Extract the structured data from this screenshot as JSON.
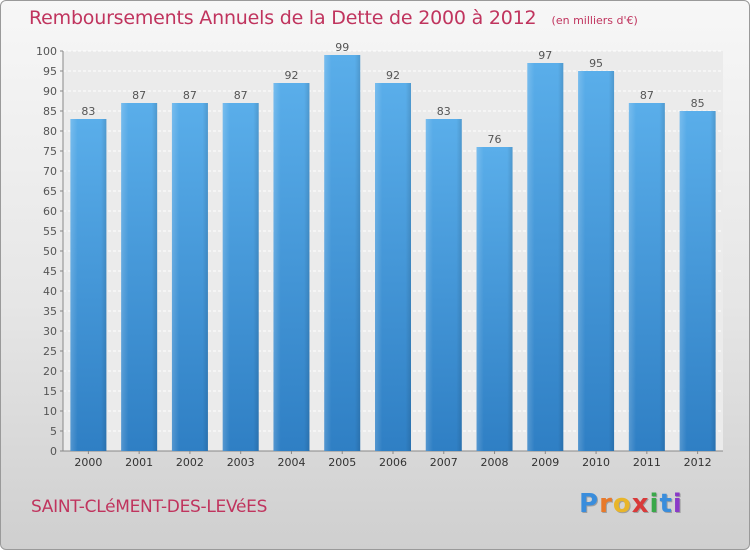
{
  "header": {
    "title": "Remboursements Annuels de la Dette de 2000 à 2012",
    "unit": "(en milliers d'€)"
  },
  "footer": {
    "commune": "SAINT-CLéMENT-DES-LEVéES",
    "logo_letters": [
      "P",
      "r",
      "o",
      "x",
      "i",
      "t",
      "i"
    ],
    "logo_colors": [
      "#3a8ddc",
      "#e8792a",
      "#e8b52a",
      "#d83a3a",
      "#3aa84a",
      "#3a8ddc",
      "#8a3ac8"
    ]
  },
  "chart_data": {
    "type": "bar",
    "title": "Remboursements Annuels de la Dette de 2000 à 2012",
    "unit": "(en milliers d'€)",
    "categories": [
      "2000",
      "2001",
      "2002",
      "2003",
      "2004",
      "2005",
      "2006",
      "2007",
      "2008",
      "2009",
      "2010",
      "2011",
      "2012"
    ],
    "values": [
      83,
      87,
      87,
      87,
      92,
      99,
      92,
      83,
      76,
      97,
      95,
      87,
      85
    ],
    "ylim": [
      0,
      100
    ],
    "yticks": [
      0,
      5,
      10,
      15,
      20,
      25,
      30,
      35,
      40,
      45,
      50,
      55,
      60,
      65,
      70,
      75,
      80,
      85,
      90,
      95,
      100
    ],
    "grid": true,
    "bar_color": "#4aa0e4",
    "data_labels": true
  }
}
